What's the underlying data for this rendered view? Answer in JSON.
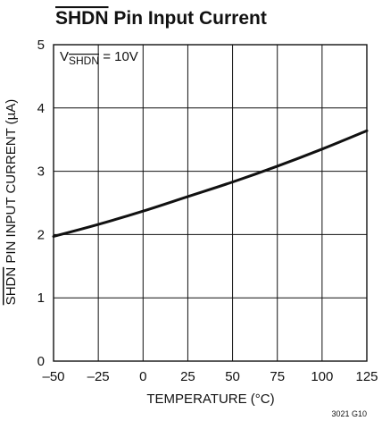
{
  "chart_data": {
    "type": "line",
    "title": "SHDN Pin Input Current",
    "title_overline": "SHDN",
    "title_rest": " Pin Input Current",
    "xlabel": "TEMPERATURE (°C)",
    "ylabel": "SHDN PIN INPUT CURRENT (µA)",
    "ylabel_overline": "SHDN",
    "ylabel_rest": " PIN INPUT CURRENT (µA)",
    "xlim": [
      -50,
      125
    ],
    "ylim": [
      0,
      5
    ],
    "xticks": [
      "–50",
      "–25",
      "0",
      "25",
      "50",
      "75",
      "100",
      "125"
    ],
    "xtick_values": [
      -50,
      -25,
      0,
      25,
      50,
      75,
      100,
      125
    ],
    "yticks": [
      "0",
      "1",
      "2",
      "3",
      "4",
      "5"
    ],
    "ytick_values": [
      0,
      1,
      2,
      3,
      4,
      5
    ],
    "grid": true,
    "annotation": {
      "prefix": "V",
      "subscript": "SHDN",
      "suffix": " = 10V"
    },
    "figure_id": "3021 G10",
    "series": [
      {
        "x": [
          -50,
          -25,
          0,
          25,
          50,
          75,
          100,
          125
        ],
        "y": [
          1.97,
          2.16,
          2.37,
          2.6,
          2.83,
          3.08,
          3.35,
          3.64
        ]
      }
    ]
  }
}
